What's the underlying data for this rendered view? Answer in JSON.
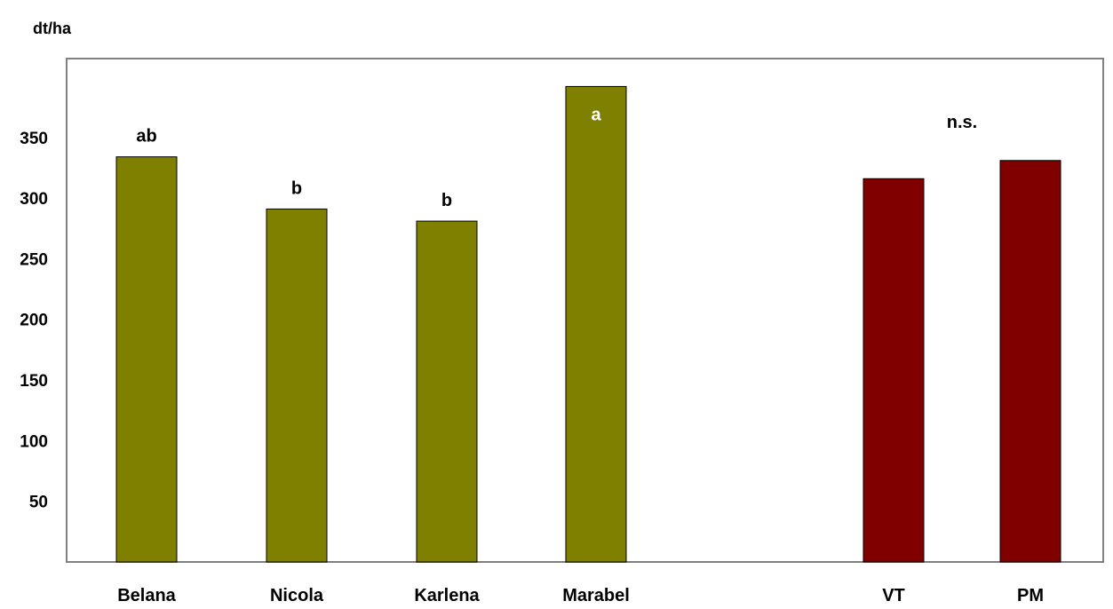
{
  "chart_data": {
    "type": "bar",
    "ylabel": "dt/ha",
    "ylim": [
      0,
      400
    ],
    "yticks": [
      "50",
      "100",
      "150",
      "200",
      "250",
      "300",
      "350"
    ],
    "grid": false,
    "legend": "none",
    "colors": {
      "variety": "#808000",
      "treatment": "#800000"
    },
    "categories": [
      "Belana",
      "Nicola",
      "Karlena",
      "Marabel",
      "VT",
      "PM"
    ],
    "values": [
      334,
      291,
      281,
      392,
      316,
      331
    ],
    "groups": [
      "variety",
      "variety",
      "variety",
      "variety",
      "treatment",
      "treatment"
    ],
    "annotations": [
      "ab",
      "b",
      "b",
      "a",
      "",
      ""
    ],
    "group_annotation": "n.s."
  }
}
